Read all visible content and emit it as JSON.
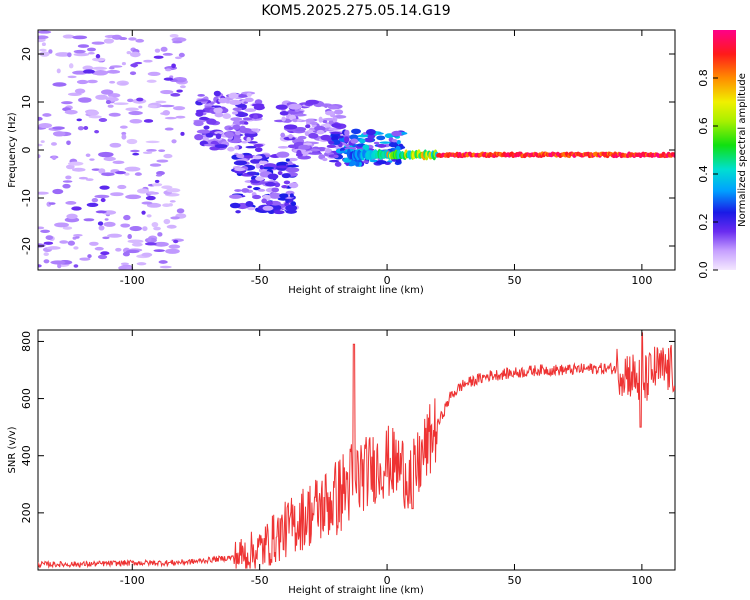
{
  "title": "KOM5.2025.275.05.14.G19",
  "chart_data": [
    {
      "type": "heatmap",
      "title": "KOM5.2025.275.05.14.G19",
      "xlabel": "Height of straight line (km)",
      "ylabel": "Frequency (Hz)",
      "xlim": [
        -137,
        113
      ],
      "ylim": [
        -25,
        25
      ],
      "xticks": [
        -100,
        -50,
        0,
        50,
        100
      ],
      "yticks": [
        -20,
        -10,
        0,
        10,
        20
      ],
      "colorbar": {
        "label": "Normalized spectral amplitude",
        "range": [
          0,
          1
        ],
        "ticks": [
          0.0,
          0.2,
          0.4,
          0.6,
          0.8
        ]
      },
      "features": [
        {
          "description": "sparse low-amplitude noise",
          "x_range": [
            -137,
            -80
          ],
          "freq_range": [
            -25,
            25
          ],
          "amplitude": 0.05
        },
        {
          "description": "blob",
          "x_center": -62,
          "freq_center": 6,
          "amplitude": 0.15
        },
        {
          "description": "blob",
          "x_center": -48,
          "freq_center": -7,
          "amplitude": 0.2
        },
        {
          "description": "blob",
          "x_center": -30,
          "freq_center": 4,
          "amplitude": 0.12
        },
        {
          "description": "carrier line",
          "x_range": [
            -15,
            113
          ],
          "freq": -1,
          "amplitude_max": 1.0
        }
      ]
    },
    {
      "type": "line",
      "xlabel": "Height of straight line (km)",
      "ylabel": "SNR (v/v)",
      "xlim": [
        -137,
        113
      ],
      "ylim": [
        0,
        840
      ],
      "xticks": [
        -100,
        -50,
        0,
        50,
        100
      ],
      "yticks": [
        200,
        400,
        600,
        800
      ],
      "series": [
        {
          "name": "SNR",
          "color": "#ee3333",
          "x": [
            -137,
            -120,
            -100,
            -85,
            -75,
            -60,
            -50,
            -40,
            -30,
            -20,
            -15,
            -10,
            -5,
            0,
            5,
            10,
            15,
            20,
            25,
            30,
            40,
            50,
            60,
            70,
            80,
            90,
            95,
            100,
            105,
            113
          ],
          "y": [
            20,
            20,
            25,
            25,
            30,
            45,
            70,
            140,
            200,
            250,
            300,
            330,
            360,
            380,
            360,
            320,
            420,
            510,
            610,
            650,
            680,
            690,
            700,
            700,
            705,
            705,
            690,
            650,
            700,
            700
          ]
        }
      ]
    }
  ]
}
